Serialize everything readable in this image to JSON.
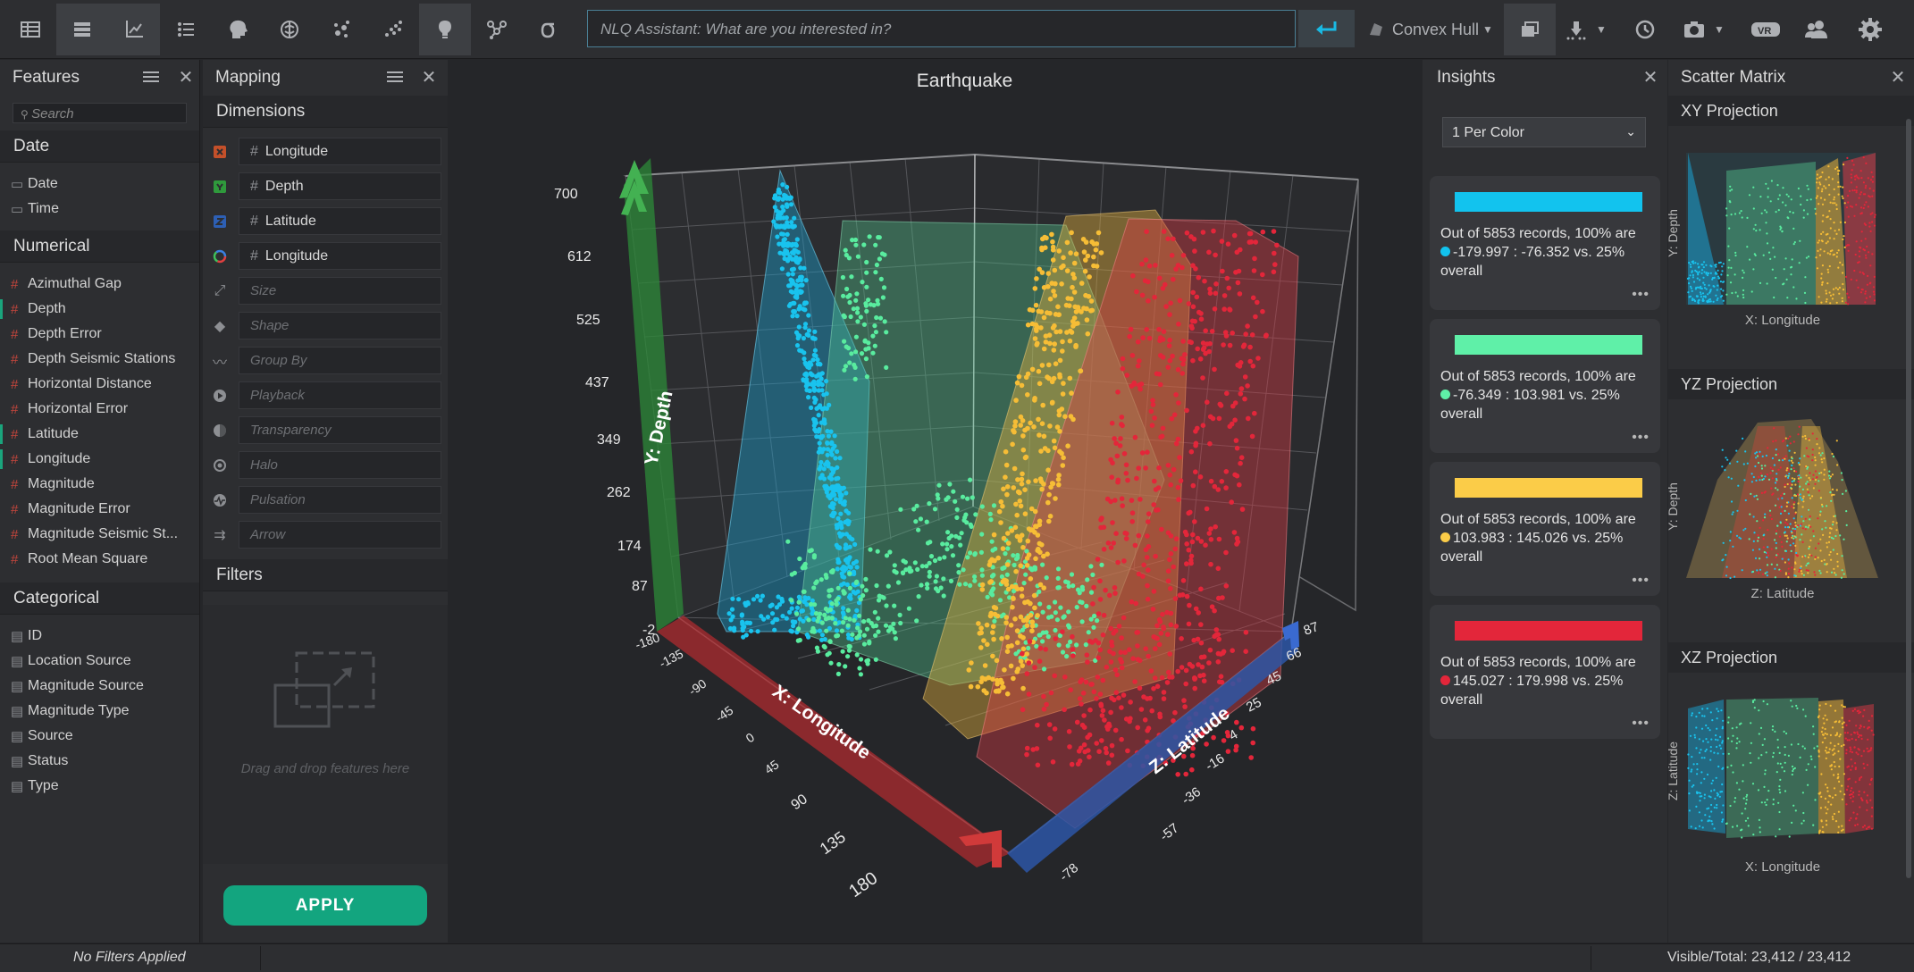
{
  "toolbar": {
    "nlq_placeholder": "NLQ Assistant: What are you interested in?",
    "shape_mode": "Convex Hull"
  },
  "features": {
    "title": "Features",
    "search_placeholder": "Search",
    "date_section": "Date",
    "date_items": [
      "Date",
      "Time"
    ],
    "numerical_section": "Numerical",
    "numerical_items": [
      "Azimuthal Gap",
      "Depth",
      "Depth Error",
      "Depth Seismic Stations",
      "Horizontal Distance",
      "Horizontal Error",
      "Latitude",
      "Longitude",
      "Magnitude",
      "Magnitude Error",
      "Magnitude Seismic St...",
      "Root Mean Square"
    ],
    "categorical_section": "Categorical",
    "categorical_items": [
      "ID",
      "Location Source",
      "Magnitude Source",
      "Magnitude Type",
      "Source",
      "Status",
      "Type"
    ]
  },
  "mapping": {
    "title": "Mapping",
    "dimensions_section": "Dimensions",
    "x": "Longitude",
    "y": "Depth",
    "z": "Latitude",
    "color": "Longitude",
    "size": "Size",
    "shape": "Shape",
    "group_by": "Group By",
    "playback": "Playback",
    "transparency": "Transparency",
    "halo": "Halo",
    "pulsation": "Pulsation",
    "arrow": "Arrow",
    "filters_section": "Filters",
    "dropzone_hint": "Drag and drop features here",
    "apply_label": "APPLY"
  },
  "viewport": {
    "title": "Earthquake",
    "y_axis_label": "Y: Depth",
    "x_axis_label": "X: Longitude",
    "z_axis_label": "Z: Latitude",
    "y_ticks": [
      "700",
      "612",
      "525",
      "437",
      "349",
      "262",
      "174",
      "87",
      "-2"
    ],
    "x_ticks": [
      "-180",
      "-135",
      "-90",
      "-45",
      "0",
      "45",
      "90",
      "135",
      "180"
    ],
    "z_ticks": [
      "87",
      "66",
      "45",
      "25",
      "4",
      "-16",
      "-36",
      "-57",
      "-78"
    ]
  },
  "insights": {
    "title": "Insights",
    "selector": "1 Per Color",
    "cards": [
      {
        "color": "#12c3ee",
        "text_a": "Out of 5853 records, 100% are",
        "text_b": "-179.997 : -76.352 vs. 25%",
        "text_c": "overall"
      },
      {
        "color": "#5ff0a8",
        "text_a": "Out of 5853 records, 100% are",
        "text_b": "-76.349 : 103.981 vs. 25%",
        "text_c": "overall"
      },
      {
        "color": "#fbcc48",
        "text_a": "Out of 5853 records, 100% are",
        "text_b": "103.983 : 145.026 vs. 25%",
        "text_c": "overall"
      },
      {
        "color": "#e3263a",
        "text_a": "Out of 5853 records, 100% are",
        "text_b": "145.027 : 179.998 vs. 25%",
        "text_c": "overall"
      }
    ]
  },
  "scatter_matrix": {
    "title": "Scatter Matrix",
    "xy_title": "XY Projection",
    "xy_xlabel": "X: Longitude",
    "xy_ylabel": "Y: Depth",
    "yz_title": "YZ Projection",
    "yz_xlabel": "Z: Latitude",
    "yz_ylabel": "Y: Depth",
    "xz_title": "XZ Projection",
    "xz_xlabel": "X: Longitude",
    "xz_ylabel": "Z: Latitude"
  },
  "status": {
    "filters": "No Filters Applied",
    "visible_total": "Visible/Total: 23,412 / 23,412"
  }
}
